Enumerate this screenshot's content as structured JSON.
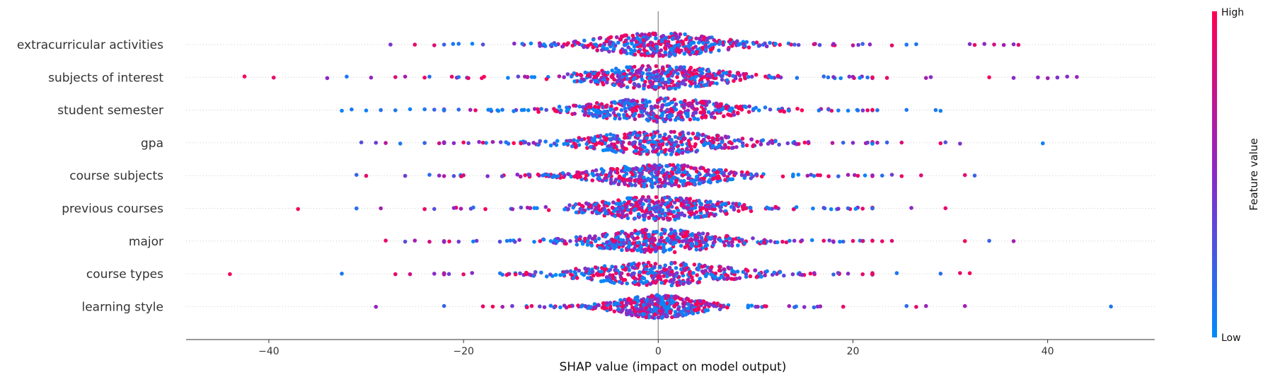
{
  "chart_data": {
    "type": "scatter",
    "subtype": "shap-beeswarm-summary",
    "xlabel": "SHAP value (impact on model output)",
    "xlim": [
      -48.5,
      51
    ],
    "x_ticks": [
      -40,
      -20,
      0,
      20,
      40
    ],
    "x_tick_labels": [
      "−40",
      "−20",
      "0",
      "20",
      "40"
    ],
    "grid": false,
    "colorbar": {
      "title": "Feature value",
      "high_label": "High",
      "low_label": "Low",
      "high_color": "#ff0052",
      "mid_color": "#8a28c8",
      "low_color": "#008bfb"
    },
    "features": [
      {
        "name": "extracurricular activities",
        "spread": 4.6,
        "extremes": [
          [
            -27.5,
            0.45
          ],
          [
            -25,
            0.9
          ],
          [
            -23,
            0.85
          ],
          [
            -22,
            0.2
          ],
          [
            -20.5,
            0.1
          ],
          [
            -18,
            0.3
          ],
          [
            14,
            0.2
          ],
          [
            16,
            0.8
          ],
          [
            18,
            0.5
          ],
          [
            20,
            0.7
          ],
          [
            21,
            0.2
          ],
          [
            24,
            0.9
          ],
          [
            25.5,
            0.1
          ],
          [
            26.5,
            0.1
          ],
          [
            32,
            0.45
          ],
          [
            32.5,
            0.9
          ],
          [
            33.5,
            0.5
          ],
          [
            34.5,
            0.8
          ],
          [
            35.5,
            0.6
          ],
          [
            36.5,
            0.5
          ],
          [
            37,
            0.85
          ]
        ]
      },
      {
        "name": "subjects of interest",
        "spread": 4.9,
        "extremes": [
          [
            -42.5,
            0.95
          ],
          [
            -39.5,
            0.9
          ],
          [
            -34,
            0.5
          ],
          [
            -32,
            0.1
          ],
          [
            -29.5,
            0.55
          ],
          [
            -27,
            0.85
          ],
          [
            -26,
            0.6
          ],
          [
            -24,
            0.95
          ],
          [
            -23.5,
            0.15
          ],
          [
            -20.5,
            0.1
          ],
          [
            -19.5,
            0.9
          ],
          [
            17,
            0.2
          ],
          [
            18,
            0.5
          ],
          [
            20,
            0.6
          ],
          [
            21.5,
            0.1
          ],
          [
            23.5,
            0.9
          ],
          [
            27.5,
            0.6
          ],
          [
            28,
            0.5
          ],
          [
            34,
            0.95
          ],
          [
            36.5,
            0.5
          ],
          [
            39,
            0.5
          ],
          [
            40,
            0.6
          ],
          [
            41,
            0.45
          ],
          [
            42,
            0.5
          ],
          [
            43,
            0.55
          ]
        ]
      },
      {
        "name": "student semester",
        "spread": 5.2,
        "extremes": [
          [
            -32.5,
            0.05
          ],
          [
            -31.5,
            0.1
          ],
          [
            -30,
            0.05
          ],
          [
            -28.5,
            0.15
          ],
          [
            -27,
            0.1
          ],
          [
            -25.5,
            0.05
          ],
          [
            -24,
            0.1
          ],
          [
            -23,
            0.2
          ],
          [
            -22,
            0.1
          ],
          [
            -20.5,
            0.15
          ],
          [
            16.5,
            0.1
          ],
          [
            17.5,
            0.2
          ],
          [
            18.5,
            0.1
          ],
          [
            19.5,
            0.05
          ],
          [
            20.5,
            0.1
          ],
          [
            21.5,
            0.9
          ],
          [
            22.5,
            0.15
          ],
          [
            25.5,
            0.1
          ],
          [
            28.5,
            0.1
          ],
          [
            29,
            0.05
          ]
        ]
      },
      {
        "name": "gpa",
        "spread": 5.1,
        "extremes": [
          [
            -30.5,
            0.3
          ],
          [
            -29,
            0.4
          ],
          [
            -28,
            0.7
          ],
          [
            -26.5,
            0.1
          ],
          [
            -24,
            0.2
          ],
          [
            -22.5,
            0.8
          ],
          [
            -21,
            0.5
          ],
          [
            -20,
            0.95
          ],
          [
            -18,
            0.9
          ],
          [
            -17,
            0.6
          ],
          [
            19,
            0.2
          ],
          [
            20,
            0.5
          ],
          [
            21.5,
            0.4
          ],
          [
            22.5,
            0.6
          ],
          [
            23.5,
            0.2
          ],
          [
            25,
            0.85
          ],
          [
            29,
            0.9
          ],
          [
            29.5,
            0.3
          ],
          [
            31,
            0.45
          ],
          [
            39.5,
            0.05
          ]
        ]
      },
      {
        "name": "course subjects",
        "spread": 4.5,
        "extremes": [
          [
            -31,
            0.2
          ],
          [
            -30,
            0.9
          ],
          [
            -26,
            0.4
          ],
          [
            -23.5,
            0.15
          ],
          [
            -22.5,
            0.5
          ],
          [
            -21,
            0.3
          ],
          [
            -20,
            0.8
          ],
          [
            17.5,
            0.9
          ],
          [
            18.5,
            0.2
          ],
          [
            19.5,
            0.6
          ],
          [
            20.5,
            0.9
          ],
          [
            23,
            0.15
          ],
          [
            24,
            0.4
          ],
          [
            25,
            0.9
          ],
          [
            27,
            0.85
          ],
          [
            31.5,
            0.9
          ],
          [
            32.5,
            0.2
          ]
        ]
      },
      {
        "name": "previous courses",
        "spread": 4.8,
        "extremes": [
          [
            -37,
            0.95
          ],
          [
            -31,
            0.15
          ],
          [
            -28.5,
            0.6
          ],
          [
            -24,
            0.9
          ],
          [
            -23,
            0.3
          ],
          [
            -21,
            0.5
          ],
          [
            -19,
            0.15
          ],
          [
            17,
            0.3
          ],
          [
            18.5,
            0.5
          ],
          [
            19.5,
            0.2
          ],
          [
            21,
            0.9
          ],
          [
            22,
            0.15
          ],
          [
            26,
            0.5
          ],
          [
            29.5,
            0.9
          ]
        ]
      },
      {
        "name": "major",
        "spread": 4.7,
        "extremes": [
          [
            -28,
            0.9
          ],
          [
            -26,
            0.3
          ],
          [
            -25,
            0.6
          ],
          [
            -23.5,
            0.8
          ],
          [
            -22,
            0.5
          ],
          [
            -20.5,
            0.4
          ],
          [
            17,
            0.9
          ],
          [
            18,
            0.5
          ],
          [
            19,
            0.2
          ],
          [
            20,
            0.9
          ],
          [
            21,
            0.85
          ],
          [
            22,
            0.95
          ],
          [
            23,
            0.9
          ],
          [
            24,
            0.85
          ],
          [
            31.5,
            0.95
          ],
          [
            34,
            0.2
          ],
          [
            36.5,
            0.6
          ]
        ]
      },
      {
        "name": "course types",
        "spread": 5.3,
        "extremes": [
          [
            -44,
            0.95
          ],
          [
            -32.5,
            0.1
          ],
          [
            -27,
            0.9
          ],
          [
            -25.5,
            0.8
          ],
          [
            -23,
            0.5
          ],
          [
            -21.5,
            0.4
          ],
          [
            -20,
            0.9
          ],
          [
            18,
            0.2
          ],
          [
            19.5,
            0.5
          ],
          [
            21,
            0.9
          ],
          [
            24.5,
            0.1
          ],
          [
            29,
            0.15
          ],
          [
            31,
            0.9
          ],
          [
            32,
            0.95
          ]
        ]
      },
      {
        "name": "learning style",
        "spread": 3.0,
        "extremes": [
          [
            -29,
            0.55
          ],
          [
            -22,
            0.2
          ],
          [
            -18,
            0.9
          ],
          [
            -17,
            0.95
          ],
          [
            -16,
            0.6
          ],
          [
            -15,
            0.4
          ],
          [
            -13,
            0.9
          ],
          [
            14,
            0.2
          ],
          [
            15,
            0.5
          ],
          [
            16,
            0.15
          ],
          [
            19,
            0.9
          ],
          [
            25.5,
            0.15
          ],
          [
            26.5,
            0.9
          ],
          [
            27.5,
            0.55
          ],
          [
            31.5,
            0.6
          ],
          [
            46.5,
            0.1
          ]
        ]
      }
    ]
  }
}
